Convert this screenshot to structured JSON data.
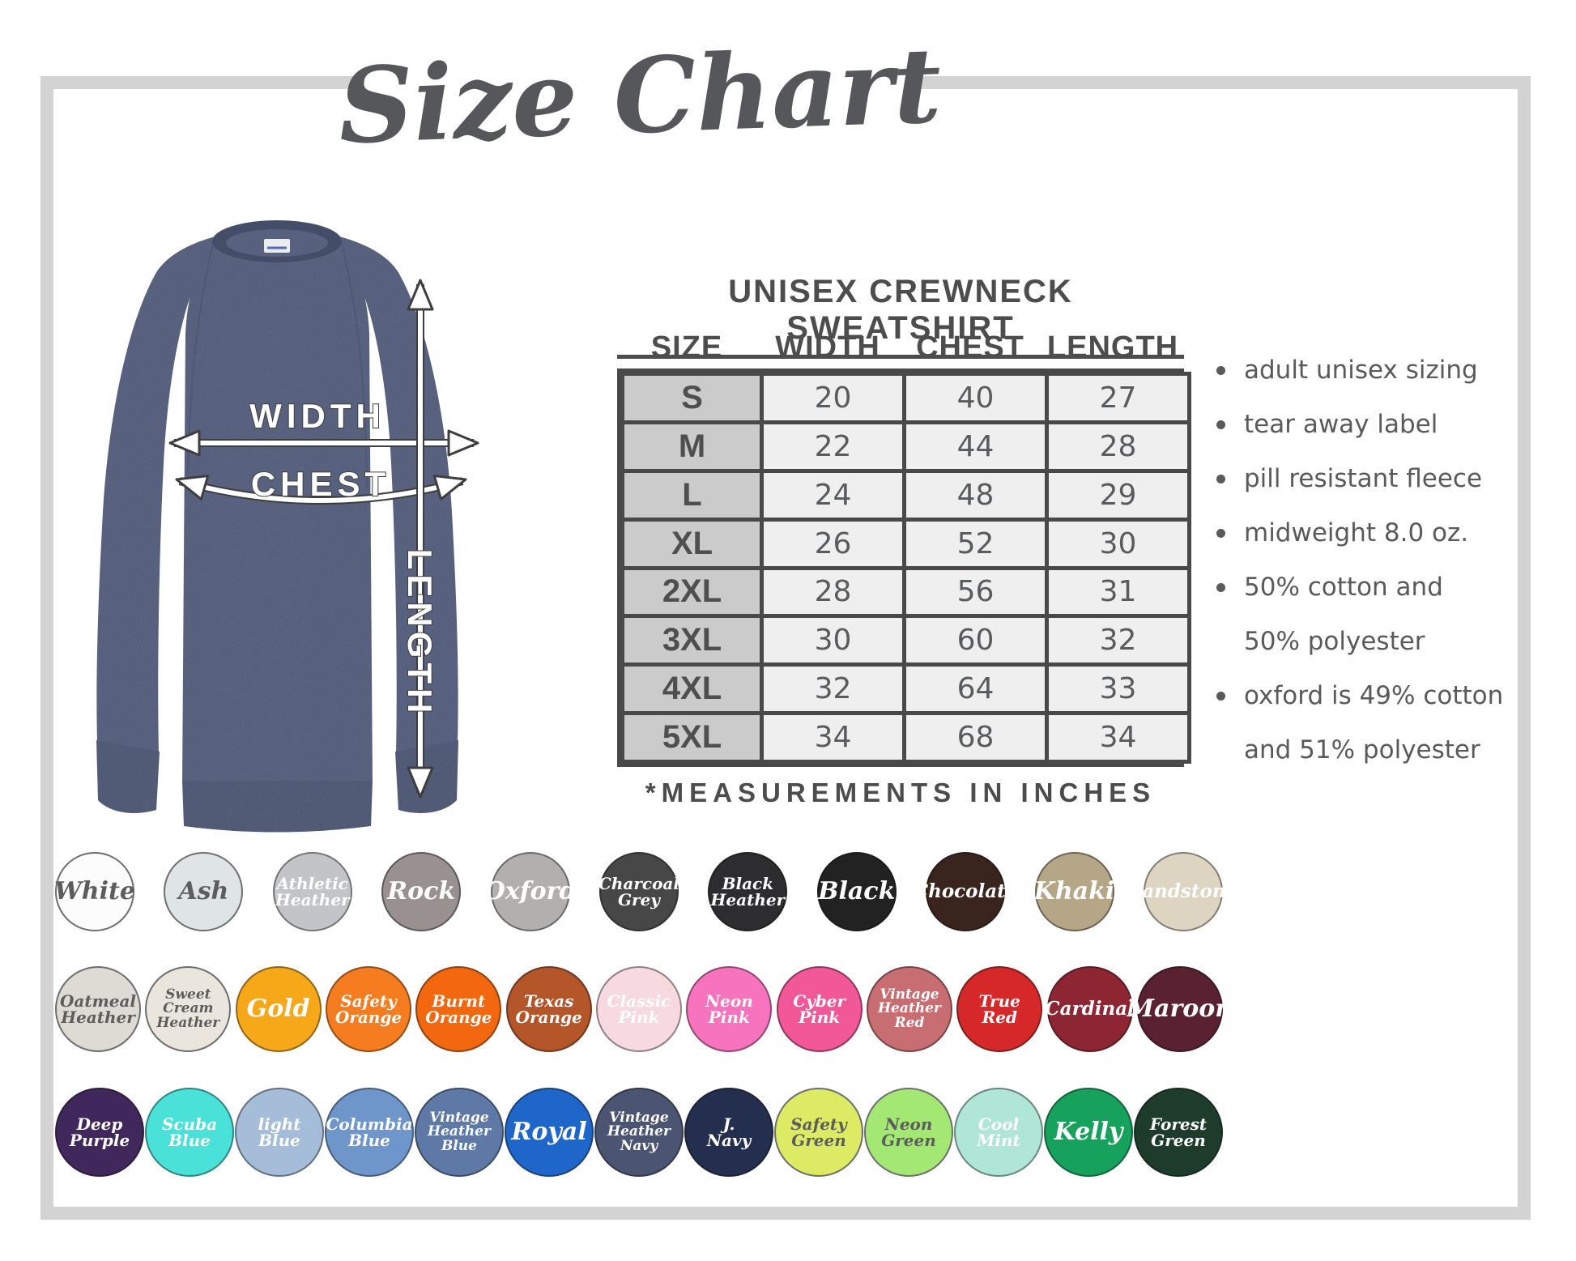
{
  "title": "Size Chart",
  "product_heading": "UNISEX CREWNECK SWEATSHIRT",
  "size_table": {
    "columns": [
      "SIZE",
      "WIDTH",
      "CHEST",
      "LENGTH"
    ],
    "rows": [
      {
        "size": "S",
        "width": "20",
        "chest": "40",
        "length": "27"
      },
      {
        "size": "M",
        "width": "22",
        "chest": "44",
        "length": "28"
      },
      {
        "size": "L",
        "width": "24",
        "chest": "48",
        "length": "29"
      },
      {
        "size": "XL",
        "width": "26",
        "chest": "52",
        "length": "30"
      },
      {
        "size": "2XL",
        "width": "28",
        "chest": "56",
        "length": "31"
      },
      {
        "size": "3XL",
        "width": "30",
        "chest": "60",
        "length": "32"
      },
      {
        "size": "4XL",
        "width": "32",
        "chest": "64",
        "length": "33"
      },
      {
        "size": "5XL",
        "width": "34",
        "chest": "68",
        "length": "34"
      }
    ],
    "footnote": "*MEASUREMENTS IN INCHES"
  },
  "diagram_labels": {
    "width": "WIDTH",
    "chest": "CHEST",
    "length": "LENGTH"
  },
  "features": [
    [
      "adult unisex sizing"
    ],
    [
      "tear away label"
    ],
    [
      "pill resistant fleece"
    ],
    [
      "midweight 8.0 oz."
    ],
    [
      "50% cotton and",
      "50% polyester"
    ],
    [
      "oxford is 49% cotton",
      "and 51% polyester"
    ]
  ],
  "color_palette": {
    "rows": [
      [
        {
          "name": "White",
          "lines": [
            "White"
          ],
          "bg": "#fcfcfc",
          "fg": "dark"
        },
        {
          "name": "Ash",
          "lines": [
            "Ash"
          ],
          "bg": "#dfe5e6",
          "fg": "dark"
        },
        {
          "name": "Athletic Heather",
          "lines": [
            "Athletic",
            "Heather"
          ],
          "bg": "#c3c4c8",
          "fg": "light"
        },
        {
          "name": "Rock",
          "lines": [
            "Rock"
          ],
          "bg": "#999190",
          "fg": "light"
        },
        {
          "name": "Oxford",
          "lines": [
            "Oxford"
          ],
          "bg": "#b2b0ae",
          "fg": "light"
        },
        {
          "name": "Charcoal Grey",
          "lines": [
            "Charcoal",
            "Grey"
          ],
          "bg": "#474747",
          "fg": "light"
        },
        {
          "name": "Black Heather",
          "lines": [
            "Black",
            "Heather"
          ],
          "bg": "#2d2d2f",
          "fg": "light"
        },
        {
          "name": "Black",
          "lines": [
            "Black"
          ],
          "bg": "#222222",
          "fg": "light"
        },
        {
          "name": "Chocolate",
          "lines": [
            "Chocolate"
          ],
          "bg": "#3a241e",
          "fg": "light"
        },
        {
          "name": "Khaki",
          "lines": [
            "Khaki"
          ],
          "bg": "#b5a687",
          "fg": "light"
        },
        {
          "name": "Sandstone",
          "lines": [
            "Sandstone"
          ],
          "bg": "#ded4c2",
          "fg": "light"
        }
      ],
      [
        {
          "name": "Oatmeal Heather",
          "lines": [
            "Oatmeal",
            "Heather"
          ],
          "bg": "#dedbd4",
          "fg": "dark"
        },
        {
          "name": "Sweet Cream Heather",
          "lines": [
            "Sweet",
            "Cream",
            "Heather"
          ],
          "bg": "#eae6de",
          "fg": "dark"
        },
        {
          "name": "Gold",
          "lines": [
            "Gold"
          ],
          "bg": "#f6a818",
          "fg": "light"
        },
        {
          "name": "Safety Orange",
          "lines": [
            "Safety",
            "Orange"
          ],
          "bg": "#f57d20",
          "fg": "light"
        },
        {
          "name": "Burnt Orange",
          "lines": [
            "Burnt",
            "Orange"
          ],
          "bg": "#f3670f",
          "fg": "light"
        },
        {
          "name": "Texas Orange",
          "lines": [
            "Texas",
            "Orange"
          ],
          "bg": "#b4562a",
          "fg": "light"
        },
        {
          "name": "Classic Pink",
          "lines": [
            "Classic",
            "Pink"
          ],
          "bg": "#f7d9e0",
          "fg": "light"
        },
        {
          "name": "Neon Pink",
          "lines": [
            "Neon",
            "Pink"
          ],
          "bg": "#f873bd",
          "fg": "light"
        },
        {
          "name": "Cyber Pink",
          "lines": [
            "Cyber",
            "Pink"
          ],
          "bg": "#f25898",
          "fg": "light"
        },
        {
          "name": "Vintage Heather Red",
          "lines": [
            "Vintage",
            "Heather",
            "Red"
          ],
          "bg": "#c86e72",
          "fg": "light"
        },
        {
          "name": "True Red",
          "lines": [
            "True",
            "Red"
          ],
          "bg": "#d62829",
          "fg": "light"
        },
        {
          "name": "Cardinal",
          "lines": [
            "Cardinal"
          ],
          "bg": "#8d2532",
          "fg": "light"
        },
        {
          "name": "Maroon",
          "lines": [
            "Maroon"
          ],
          "bg": "#5a2230",
          "fg": "light"
        }
      ],
      [
        {
          "name": "Deep Purple",
          "lines": [
            "Deep",
            "Purple"
          ],
          "bg": "#40285c",
          "fg": "light"
        },
        {
          "name": "Scuba Blue",
          "lines": [
            "Scuba",
            "Blue"
          ],
          "bg": "#4ae2d8",
          "fg": "light"
        },
        {
          "name": "Light Blue",
          "lines": [
            "light",
            "Blue"
          ],
          "bg": "#a5bdd9",
          "fg": "light"
        },
        {
          "name": "Columbia Blue",
          "lines": [
            "Columbia",
            "Blue"
          ],
          "bg": "#6f96ca",
          "fg": "light"
        },
        {
          "name": "Vintage Heather Blue",
          "lines": [
            "Vintage",
            "Heather",
            "Blue"
          ],
          "bg": "#5e79a5",
          "fg": "light"
        },
        {
          "name": "Royal",
          "lines": [
            "Royal"
          ],
          "bg": "#1f66cb",
          "fg": "light"
        },
        {
          "name": "Vintage Heather Navy",
          "lines": [
            "Vintage",
            "Heather",
            "Navy"
          ],
          "bg": "#4b5572",
          "fg": "light"
        },
        {
          "name": "J. Navy",
          "lines": [
            "J.",
            "Navy"
          ],
          "bg": "#242e4e",
          "fg": "light"
        },
        {
          "name": "Safety Green",
          "lines": [
            "Safety",
            "Green"
          ],
          "bg": "#dcea64",
          "fg": "dark"
        },
        {
          "name": "Neon Green",
          "lines": [
            "Neon",
            "Green"
          ],
          "bg": "#a2e873",
          "fg": "dark"
        },
        {
          "name": "Cool Mint",
          "lines": [
            "Cool",
            "Mint"
          ],
          "bg": "#b0e6d6",
          "fg": "light"
        },
        {
          "name": "Kelly",
          "lines": [
            "Kelly"
          ],
          "bg": "#16a15d",
          "fg": "light"
        },
        {
          "name": "Forest Green",
          "lines": [
            "Forest",
            "Green"
          ],
          "bg": "#1d3c2b",
          "fg": "light"
        }
      ]
    ]
  },
  "palette": {
    "frame_gray": "#d3d3d3",
    "table_border": "#494949",
    "size_column_bg": "#cbcbcb",
    "value_cell_bg": "#efefef",
    "text_dark": "#4d4d4d",
    "sweatshirt_navy": "#4d5878"
  }
}
